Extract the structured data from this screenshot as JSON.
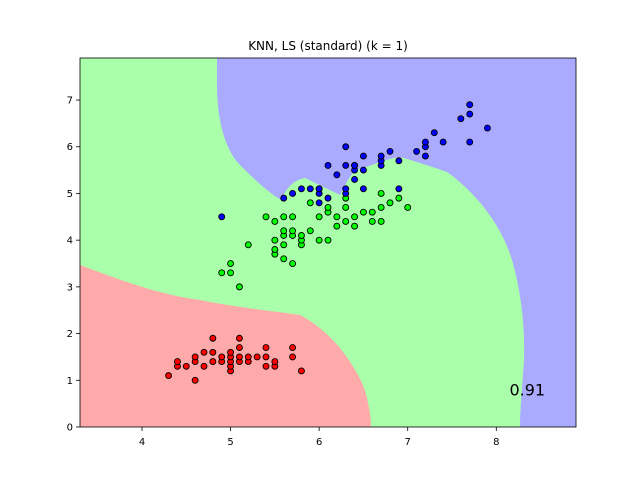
{
  "chart_data": {
    "type": "scatter",
    "title": "KNN, LS (standard) (k = 1)",
    "xlabel": "",
    "ylabel": "",
    "xlim": [
      3.3,
      8.9
    ],
    "ylim": [
      0,
      7.9
    ],
    "xticks": [
      4,
      5,
      6,
      7,
      8
    ],
    "yticks": [
      0,
      1,
      2,
      3,
      4,
      5,
      6,
      7
    ],
    "grid": false,
    "annotation": {
      "text": "0.91",
      "x": 8.35,
      "y": 0.8
    },
    "region_colors": [
      "#ffaaaa",
      "#aaffaa",
      "#aaaaff"
    ],
    "series": [
      {
        "color": "#ff0000",
        "points": [
          [
            4.3,
            1.1
          ],
          [
            4.4,
            1.3
          ],
          [
            4.4,
            1.4
          ],
          [
            4.5,
            1.3
          ],
          [
            4.6,
            1.0
          ],
          [
            4.6,
            1.4
          ],
          [
            4.6,
            1.5
          ],
          [
            4.7,
            1.3
          ],
          [
            4.7,
            1.6
          ],
          [
            4.8,
            1.4
          ],
          [
            4.8,
            1.6
          ],
          [
            4.8,
            1.9
          ],
          [
            4.9,
            1.4
          ],
          [
            4.9,
            1.5
          ],
          [
            5.0,
            1.2
          ],
          [
            5.0,
            1.3
          ],
          [
            5.0,
            1.4
          ],
          [
            5.0,
            1.5
          ],
          [
            5.0,
            1.6
          ],
          [
            5.1,
            1.4
          ],
          [
            5.1,
            1.5
          ],
          [
            5.1,
            1.7
          ],
          [
            5.1,
            1.9
          ],
          [
            5.2,
            1.4
          ],
          [
            5.2,
            1.5
          ],
          [
            5.3,
            1.5
          ],
          [
            5.4,
            1.3
          ],
          [
            5.4,
            1.5
          ],
          [
            5.4,
            1.7
          ],
          [
            5.5,
            1.3
          ],
          [
            5.5,
            1.4
          ],
          [
            5.7,
            1.5
          ],
          [
            5.7,
            1.7
          ],
          [
            5.8,
            1.2
          ]
        ]
      },
      {
        "color": "#00ff00",
        "points": [
          [
            5.0,
            3.3
          ],
          [
            5.0,
            3.5
          ],
          [
            4.9,
            3.3
          ],
          [
            5.1,
            3.0
          ],
          [
            5.2,
            3.9
          ],
          [
            5.4,
            4.5
          ],
          [
            5.5,
            3.7
          ],
          [
            5.5,
            3.8
          ],
          [
            5.5,
            4.0
          ],
          [
            5.5,
            4.4
          ],
          [
            5.6,
            3.6
          ],
          [
            5.6,
            3.9
          ],
          [
            5.6,
            4.1
          ],
          [
            5.6,
            4.2
          ],
          [
            5.6,
            4.5
          ],
          [
            5.7,
            3.5
          ],
          [
            5.7,
            4.1
          ],
          [
            5.7,
            4.2
          ],
          [
            5.7,
            4.5
          ],
          [
            5.8,
            3.9
          ],
          [
            5.8,
            4.0
          ],
          [
            5.8,
            4.1
          ],
          [
            5.9,
            4.2
          ],
          [
            5.9,
            4.8
          ],
          [
            6.0,
            4.0
          ],
          [
            6.0,
            4.5
          ],
          [
            6.0,
            5.1
          ],
          [
            6.1,
            4.0
          ],
          [
            6.1,
            4.6
          ],
          [
            6.1,
            4.7
          ],
          [
            6.2,
            4.3
          ],
          [
            6.2,
            4.5
          ],
          [
            6.3,
            4.4
          ],
          [
            6.3,
            4.7
          ],
          [
            6.3,
            4.9
          ],
          [
            6.4,
            4.3
          ],
          [
            6.4,
            4.5
          ],
          [
            6.5,
            4.6
          ],
          [
            6.6,
            4.4
          ],
          [
            6.6,
            4.6
          ],
          [
            6.7,
            4.4
          ],
          [
            6.7,
            4.7
          ],
          [
            6.7,
            5.0
          ],
          [
            6.8,
            4.8
          ],
          [
            6.9,
            4.9
          ],
          [
            7.0,
            4.7
          ]
        ]
      },
      {
        "color": "#0000ff",
        "points": [
          [
            4.9,
            4.5
          ],
          [
            5.6,
            4.9
          ],
          [
            5.7,
            5.0
          ],
          [
            5.8,
            5.1
          ],
          [
            5.9,
            5.1
          ],
          [
            6.0,
            4.8
          ],
          [
            6.0,
            5.0
          ],
          [
            6.1,
            5.6
          ],
          [
            6.2,
            5.4
          ],
          [
            6.3,
            5.0
          ],
          [
            6.3,
            5.1
          ],
          [
            6.3,
            5.6
          ],
          [
            6.3,
            6.0
          ],
          [
            6.4,
            5.3
          ],
          [
            6.4,
            5.5
          ],
          [
            6.4,
            5.6
          ],
          [
            6.5,
            5.1
          ],
          [
            6.5,
            5.5
          ],
          [
            6.5,
            5.8
          ],
          [
            6.7,
            5.6
          ],
          [
            6.7,
            5.7
          ],
          [
            6.7,
            5.8
          ],
          [
            6.8,
            5.9
          ],
          [
            6.9,
            5.1
          ],
          [
            6.9,
            5.7
          ],
          [
            7.1,
            5.9
          ],
          [
            7.2,
            5.8
          ],
          [
            7.2,
            6.0
          ],
          [
            7.2,
            6.1
          ],
          [
            7.3,
            6.3
          ],
          [
            7.4,
            6.1
          ],
          [
            7.6,
            6.6
          ],
          [
            7.7,
            6.1
          ],
          [
            7.7,
            6.7
          ],
          [
            7.7,
            6.9
          ],
          [
            7.9,
            6.4
          ],
          [
            6.0,
            5.1
          ],
          [
            6.4,
            5.6
          ],
          [
            6.1,
            4.9
          ]
        ]
      }
    ]
  }
}
